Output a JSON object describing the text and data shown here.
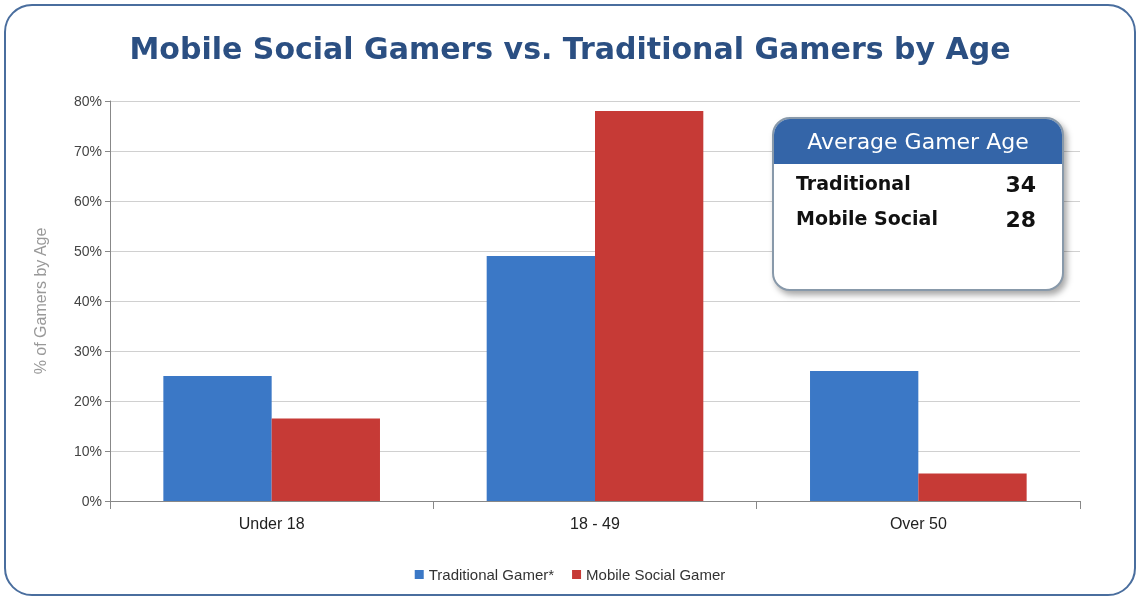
{
  "chart_data": {
    "type": "bar",
    "title": "Mobile Social Gamers vs. Traditional Gamers by Age",
    "ylabel": "% of Gamers by Age",
    "categories": [
      "Under 18",
      "18 - 49",
      "Over 50"
    ],
    "series": [
      {
        "name": "Traditional Gamer*",
        "color": "#3b78c6",
        "values": [
          25,
          49,
          26
        ]
      },
      {
        "name": "Mobile Social Gamer",
        "color": "#c63a36",
        "values": [
          16.5,
          78,
          5.5
        ]
      }
    ],
    "ylim": [
      0,
      80
    ],
    "yticks": [
      {
        "value": 0,
        "label": "0%"
      },
      {
        "value": 10,
        "label": "10%"
      },
      {
        "value": 20,
        "label": "20%"
      },
      {
        "value": 30,
        "label": "30%"
      },
      {
        "value": 40,
        "label": "40%"
      },
      {
        "value": 50,
        "label": "50%"
      },
      {
        "value": 60,
        "label": "60%"
      },
      {
        "value": 70,
        "label": "70%"
      },
      {
        "value": 80,
        "label": "80%"
      }
    ],
    "grid": "y",
    "legend": "bottom",
    "annotations": [
      "Average Gamer Age",
      "Traditional",
      "34",
      "Mobile Social",
      "28"
    ]
  }
}
